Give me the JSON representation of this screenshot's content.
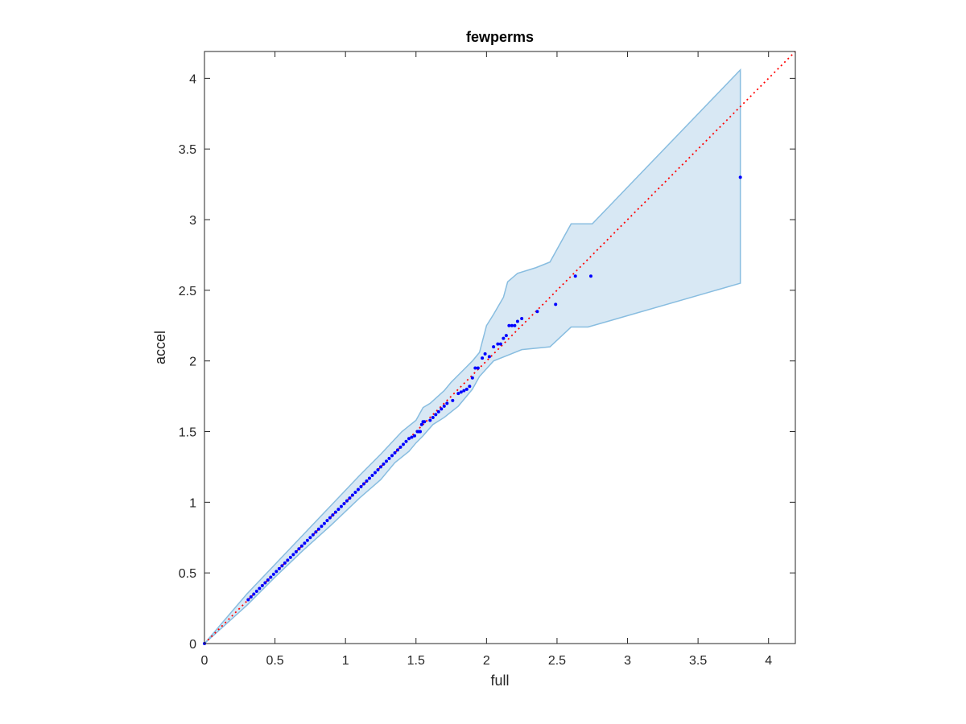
{
  "chart_data": {
    "type": "scatter",
    "title": "fewperms",
    "xlabel": "full",
    "ylabel": "accel",
    "xlim": [
      0,
      4.19
    ],
    "ylim": [
      0,
      4.19
    ],
    "xticks": [
      0,
      0.5,
      1,
      1.5,
      2,
      2.5,
      3,
      3.5,
      4
    ],
    "yticks": [
      0,
      0.5,
      1,
      1.5,
      2,
      2.5,
      3,
      3.5,
      4
    ],
    "xtick_labels": [
      "0",
      "0.5",
      "1",
      "1.5",
      "2",
      "2.5",
      "3",
      "3.5",
      "4"
    ],
    "ytick_labels": [
      "0",
      "0.5",
      "1",
      "1.5",
      "2",
      "2.5",
      "3",
      "3.5",
      "4"
    ],
    "grid": false,
    "legend": "none",
    "reference_line": {
      "from": [
        0,
        0
      ],
      "to": [
        4.19,
        4.19
      ],
      "style": "dotted",
      "color": "#ff0000"
    },
    "confidence_band": {
      "color_fill": "#d8e8f4",
      "color_edge": "#88bde0",
      "upper": [
        [
          0.0,
          0.0
        ],
        [
          0.3,
          0.35
        ],
        [
          0.5,
          0.56
        ],
        [
          0.7,
          0.77
        ],
        [
          0.9,
          0.98
        ],
        [
          1.1,
          1.19
        ],
        [
          1.25,
          1.34
        ],
        [
          1.4,
          1.5
        ],
        [
          1.5,
          1.58
        ],
        [
          1.55,
          1.67
        ],
        [
          1.6,
          1.7
        ],
        [
          1.7,
          1.79
        ],
        [
          1.75,
          1.85
        ],
        [
          1.8,
          1.9
        ],
        [
          1.85,
          1.95
        ],
        [
          1.9,
          2.0
        ],
        [
          1.95,
          2.06
        ],
        [
          2.0,
          2.25
        ],
        [
          2.05,
          2.33
        ],
        [
          2.12,
          2.45
        ],
        [
          2.15,
          2.56
        ],
        [
          2.22,
          2.62
        ],
        [
          2.35,
          2.66
        ],
        [
          2.45,
          2.7
        ],
        [
          2.6,
          2.97
        ],
        [
          2.75,
          2.97
        ],
        [
          3.8,
          4.06
        ]
      ],
      "lower": [
        [
          0.0,
          0.0
        ],
        [
          0.3,
          0.27
        ],
        [
          0.5,
          0.47
        ],
        [
          0.7,
          0.66
        ],
        [
          0.9,
          0.84
        ],
        [
          1.1,
          1.03
        ],
        [
          1.25,
          1.16
        ],
        [
          1.35,
          1.28
        ],
        [
          1.45,
          1.36
        ],
        [
          1.5,
          1.42
        ],
        [
          1.55,
          1.47
        ],
        [
          1.62,
          1.55
        ],
        [
          1.7,
          1.6
        ],
        [
          1.8,
          1.68
        ],
        [
          1.9,
          1.8
        ],
        [
          1.95,
          1.89
        ],
        [
          2.05,
          2.0
        ],
        [
          2.25,
          2.08
        ],
        [
          2.45,
          2.1
        ],
        [
          2.6,
          2.24
        ],
        [
          2.72,
          2.24
        ],
        [
          3.8,
          2.55
        ]
      ]
    },
    "series": [
      {
        "color": "#0000ff",
        "x": [
          0.0,
          0.31,
          0.33,
          0.35,
          0.37,
          0.39,
          0.41,
          0.43,
          0.45,
          0.47,
          0.49,
          0.51,
          0.53,
          0.55,
          0.57,
          0.59,
          0.61,
          0.63,
          0.65,
          0.67,
          0.69,
          0.71,
          0.73,
          0.75,
          0.77,
          0.79,
          0.81,
          0.83,
          0.85,
          0.87,
          0.89,
          0.91,
          0.93,
          0.95,
          0.97,
          0.99,
          1.01,
          1.03,
          1.05,
          1.07,
          1.09,
          1.11,
          1.13,
          1.15,
          1.17,
          1.19,
          1.21,
          1.23,
          1.25,
          1.27,
          1.29,
          1.31,
          1.33,
          1.35,
          1.37,
          1.39,
          1.41,
          1.43,
          1.45,
          1.47,
          1.49,
          1.51,
          1.52,
          1.53,
          1.54,
          1.55,
          1.56,
          1.6,
          1.62,
          1.64,
          1.66,
          1.68,
          1.7,
          1.72,
          1.76,
          1.8,
          1.82,
          1.84,
          1.86,
          1.88,
          1.9,
          1.92,
          1.94,
          1.97,
          1.99,
          2.02,
          2.05,
          2.08,
          2.1,
          2.12,
          2.14,
          2.16,
          2.18,
          2.2,
          2.22,
          2.25,
          2.36,
          2.49,
          2.63,
          2.74,
          3.8
        ],
        "y": [
          0.0,
          0.31,
          0.33,
          0.35,
          0.37,
          0.39,
          0.41,
          0.43,
          0.45,
          0.47,
          0.49,
          0.51,
          0.53,
          0.55,
          0.57,
          0.59,
          0.61,
          0.63,
          0.65,
          0.67,
          0.69,
          0.71,
          0.73,
          0.75,
          0.77,
          0.79,
          0.81,
          0.83,
          0.85,
          0.87,
          0.89,
          0.91,
          0.93,
          0.95,
          0.97,
          0.99,
          1.01,
          1.03,
          1.05,
          1.07,
          1.09,
          1.11,
          1.13,
          1.15,
          1.17,
          1.19,
          1.21,
          1.23,
          1.25,
          1.27,
          1.29,
          1.31,
          1.33,
          1.35,
          1.37,
          1.39,
          1.41,
          1.43,
          1.45,
          1.46,
          1.47,
          1.5,
          1.5,
          1.5,
          1.55,
          1.57,
          1.57,
          1.58,
          1.6,
          1.62,
          1.64,
          1.66,
          1.68,
          1.7,
          1.72,
          1.77,
          1.78,
          1.79,
          1.8,
          1.82,
          1.88,
          1.95,
          1.95,
          2.02,
          2.05,
          2.03,
          2.1,
          2.12,
          2.12,
          2.16,
          2.18,
          2.25,
          2.25,
          2.25,
          2.28,
          2.3,
          2.35,
          2.4,
          2.6,
          2.6,
          3.3
        ]
      }
    ]
  }
}
